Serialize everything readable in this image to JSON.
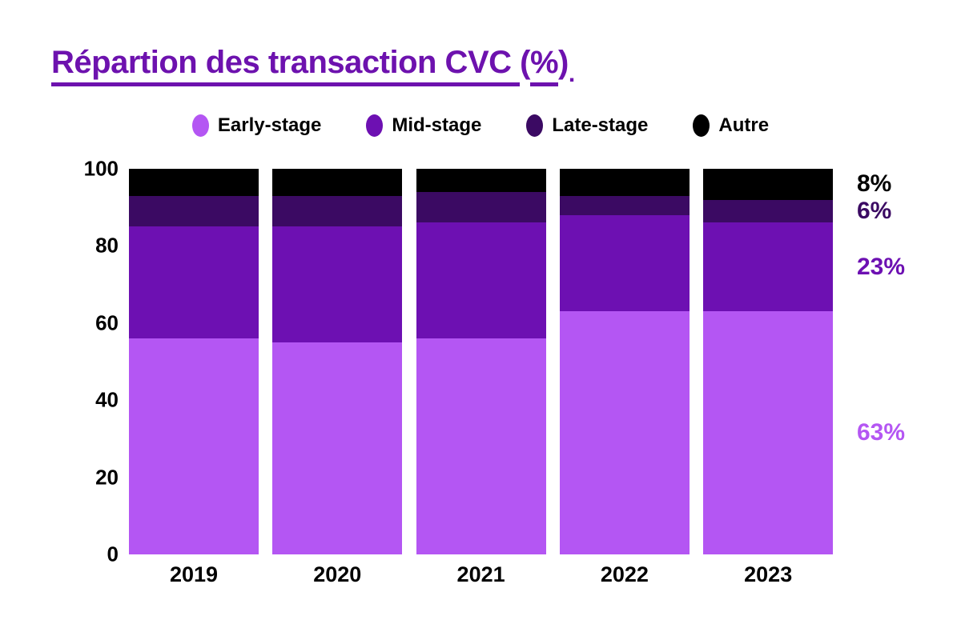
{
  "title": {
    "text": "Répartion des transaction CVC (%).",
    "color": "#6D12AE",
    "parts": [
      {
        "text": "Répartion des transaction CVC ",
        "underline": true,
        "lowered": false
      },
      {
        "text": "(",
        "underline": false,
        "lowered": false
      },
      {
        "text": "%",
        "underline": true,
        "lowered": false
      },
      {
        "text": ")",
        "underline": false,
        "lowered": false
      },
      {
        "text": ".",
        "underline": false,
        "lowered": true
      }
    ]
  },
  "chart_data": {
    "type": "bar",
    "stacked": true,
    "title": "Répartion des transaction CVC (%)",
    "xlabel": "",
    "ylabel": "",
    "categories": [
      "2019",
      "2020",
      "2021",
      "2022",
      "2023"
    ],
    "series": [
      {
        "name": "Early-stage",
        "color": "#B456F3",
        "values": [
          56,
          55,
          56,
          63,
          63
        ]
      },
      {
        "name": "Mid-stage",
        "color": "#6D10B2",
        "values": [
          29,
          30,
          30,
          25,
          23
        ]
      },
      {
        "name": "Late-stage",
        "color": "#3B0A63",
        "values": [
          8,
          8,
          8,
          5,
          6
        ]
      },
      {
        "name": "Autre",
        "color": "#000000",
        "values": [
          7,
          7,
          6,
          7,
          8
        ]
      }
    ],
    "ylim": [
      0,
      100
    ],
    "yticks": [
      0,
      20,
      40,
      60,
      80,
      100
    ],
    "grid": false,
    "legend_position": "top",
    "annotations": [
      {
        "text": "8%",
        "series": "Autre"
      },
      {
        "text": "6%",
        "series": "Late-stage"
      },
      {
        "text": "23%",
        "series": "Mid-stage"
      },
      {
        "text": "63%",
        "series": "Early-stage"
      }
    ]
  }
}
